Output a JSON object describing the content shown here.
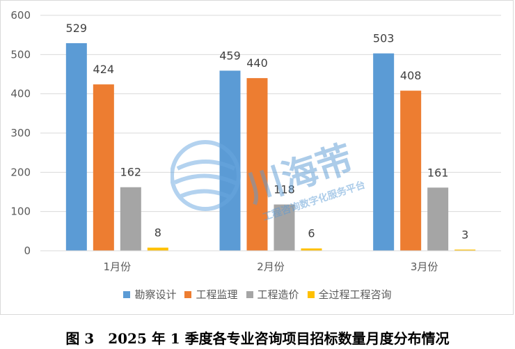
{
  "chart_data": {
    "type": "bar",
    "categories": [
      "1月份",
      "2月份",
      "3月份"
    ],
    "series": [
      {
        "name": "勘察设计",
        "values": [
          529,
          459,
          503
        ],
        "color": "#5b9bd5"
      },
      {
        "name": "工程监理",
        "values": [
          424,
          440,
          408
        ],
        "color": "#ed7d31"
      },
      {
        "name": "工程造价",
        "values": [
          162,
          118,
          161
        ],
        "color": "#a5a5a5"
      },
      {
        "name": "全过程工程咨询",
        "values": [
          8,
          6,
          3
        ],
        "color": "#ffc000"
      }
    ],
    "ylim": [
      0,
      600
    ],
    "yticks": [
      0,
      100,
      200,
      300,
      400,
      500,
      600
    ],
    "grid": true,
    "legend_position": "bottom"
  },
  "caption": "图 3　2025 年 1 季度各专业咨询项目招标数量月度分布情况",
  "watermark": {
    "brand": "川海芾",
    "tagline": "工程咨询数字化服务平台"
  }
}
